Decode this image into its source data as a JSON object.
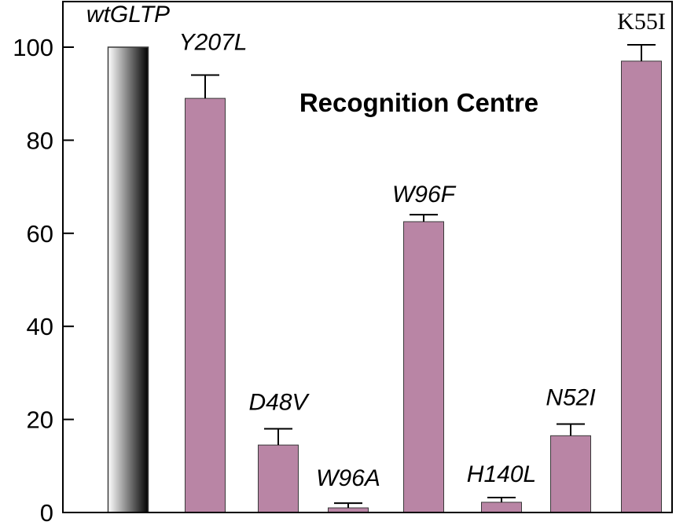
{
  "chart_data": {
    "type": "bar",
    "title": "Recognition Centre",
    "xlabel": "",
    "ylabel": "",
    "ylim": [
      0,
      110
    ],
    "yticks": [
      0,
      20,
      40,
      60,
      80,
      100
    ],
    "grid": false,
    "categories": [
      "wtGLTP",
      "Y207L",
      "D48V",
      "W96A",
      "W96F",
      "H140L",
      "N52I",
      "K55I"
    ],
    "values": [
      100,
      89,
      14.5,
      1,
      62.5,
      2.2,
      16.5,
      97
    ],
    "errors": [
      0,
      5,
      3.5,
      1,
      1.5,
      1,
      2.5,
      3.5
    ],
    "colors": {
      "mutant_bar": "#b985a5",
      "wt_gradient_start": "#ffffff",
      "wt_gradient_end": "#000000",
      "axis": "#000000"
    }
  }
}
